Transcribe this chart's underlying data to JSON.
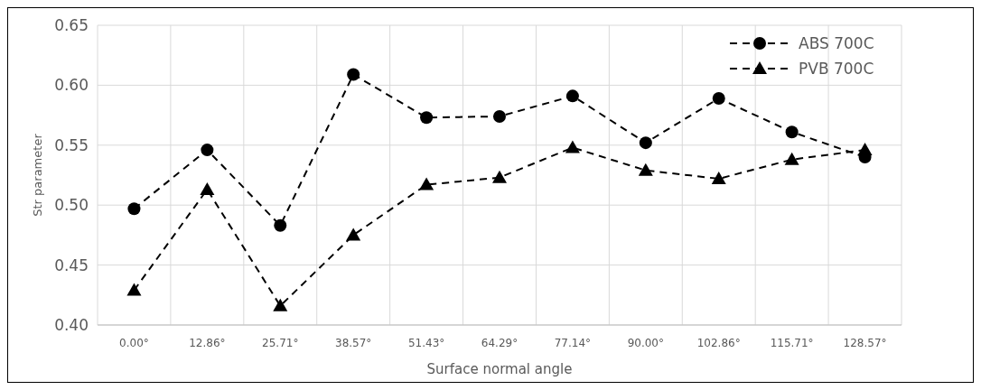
{
  "chart_data": {
    "type": "line",
    "xlabel": "Surface normal angle",
    "ylabel": "Str parameter",
    "categories": [
      "0.00°",
      "12.86°",
      "25.71°",
      "38.57°",
      "51.43°",
      "64.29°",
      "77.14°",
      "90.00°",
      "102.86°",
      "115.71°",
      "128.57°"
    ],
    "series": [
      {
        "name": "ABS 700C",
        "color": "#000000",
        "marker": "circle",
        "values": [
          0.497,
          0.546,
          0.483,
          0.609,
          0.573,
          0.574,
          0.591,
          0.552,
          0.589,
          0.561,
          0.54
        ]
      },
      {
        "name": "PVB 700C",
        "color": "#000000",
        "marker": "triangle",
        "values": [
          0.429,
          0.513,
          0.416,
          0.475,
          0.517,
          0.523,
          0.548,
          0.529,
          0.522,
          0.538,
          0.546
        ]
      }
    ],
    "ylim": [
      0.4,
      0.65
    ],
    "yticks": [
      {
        "value": 0.4,
        "label": "0.40"
      },
      {
        "value": 0.45,
        "label": "0.45"
      },
      {
        "value": 0.5,
        "label": "0.50"
      },
      {
        "value": 0.55,
        "label": "0.55"
      },
      {
        "value": 0.6,
        "label": "0.60"
      },
      {
        "value": 0.65,
        "label": "0.65"
      }
    ],
    "grid": true,
    "legend": "top right",
    "line_style": "dashed"
  }
}
